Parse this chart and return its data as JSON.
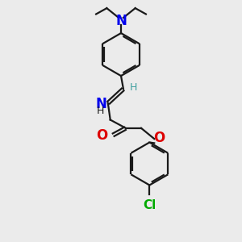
{
  "bg_color": "#ebebeb",
  "bond_color": "#1a1a1a",
  "N_color": "#0000ee",
  "O_color": "#dd0000",
  "Cl_color": "#00aa00",
  "imine_H_color": "#40a0a0",
  "line_width": 1.6,
  "font_size": 10,
  "figsize": [
    3.0,
    3.0
  ],
  "dpi": 100,
  "xlim": [
    0,
    10
  ],
  "ylim": [
    0,
    10
  ]
}
